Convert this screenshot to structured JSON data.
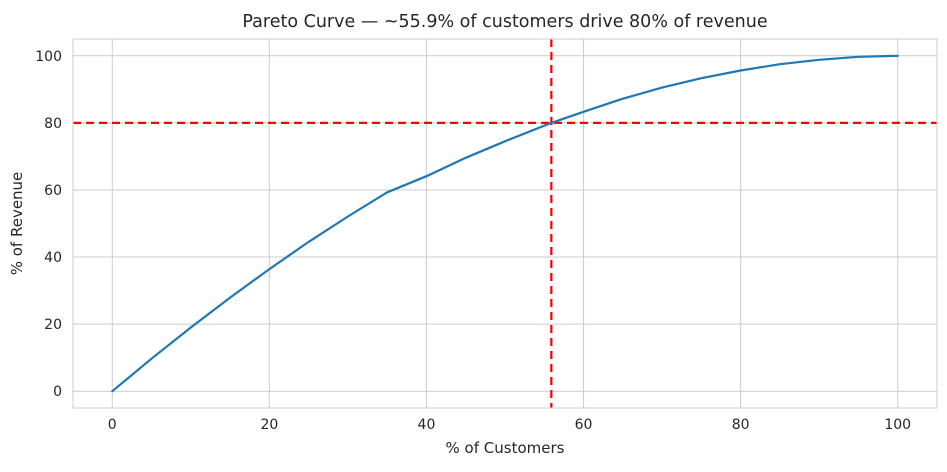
{
  "chart_data": {
    "type": "line",
    "title": "Pareto Curve — ~55.9% of customers drive 80% of revenue",
    "xlabel": "% of Customers",
    "ylabel": "% of Revenue",
    "xlim": [
      -5,
      105
    ],
    "ylim": [
      -5,
      105
    ],
    "xticks": [
      0,
      20,
      40,
      60,
      80,
      100
    ],
    "yticks": [
      0,
      20,
      40,
      60,
      80,
      100
    ],
    "grid": true,
    "series": [
      {
        "color": "#1f77b4",
        "x": [
          0,
          5,
          10,
          15,
          20,
          25,
          30,
          35,
          40,
          45,
          50,
          55.9,
          60,
          65,
          70,
          75,
          80,
          85,
          90,
          95,
          100
        ],
        "y": [
          0,
          9.7,
          19.0,
          27.9,
          36.4,
          44.5,
          52.1,
          59.3,
          64.1,
          69.6,
          74.5,
          80.0,
          83.3,
          87.2,
          90.5,
          93.3,
          95.6,
          97.5,
          98.8,
          99.7,
          100
        ]
      }
    ],
    "reference_lines": [
      {
        "orientation": "horizontal",
        "value": 80,
        "color": "#ff0000",
        "style": "dashed"
      },
      {
        "orientation": "vertical",
        "value": 55.9,
        "color": "#ff0000",
        "style": "dashed"
      }
    ]
  }
}
